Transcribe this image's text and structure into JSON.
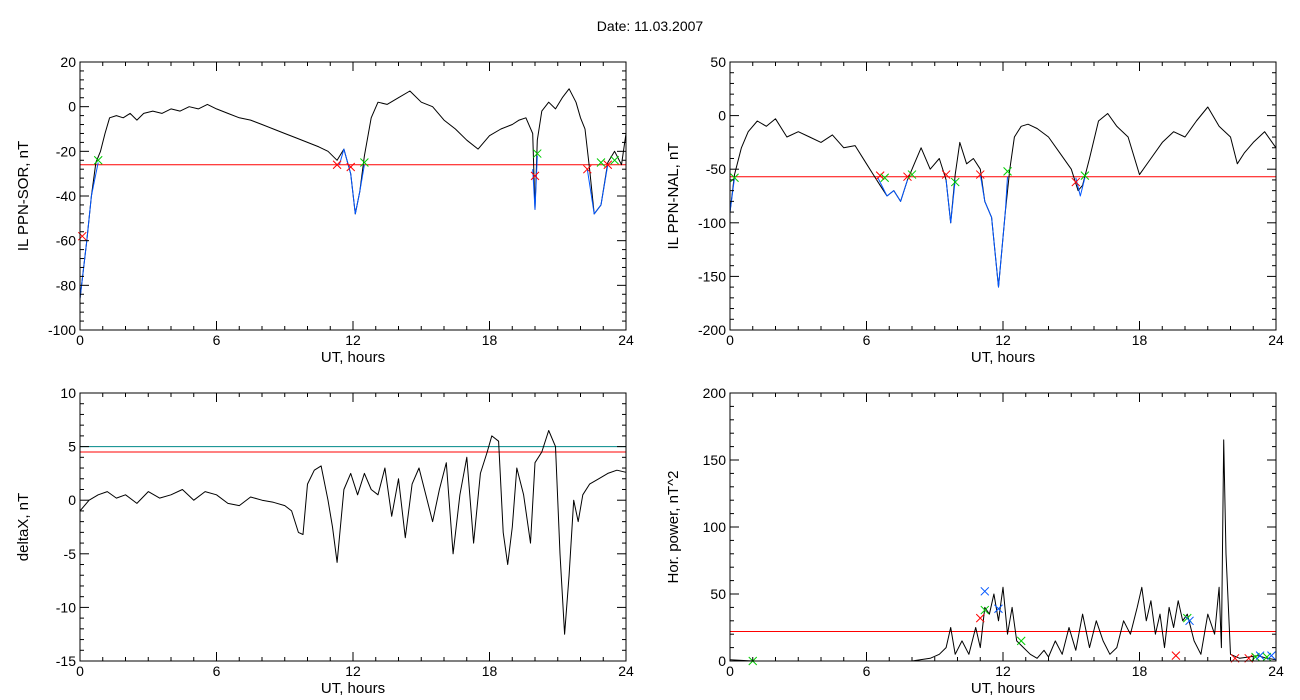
{
  "page": {
    "title": "Date:  11.03.2007"
  },
  "chart_data": [
    {
      "id": "p1",
      "type": "line",
      "ylabel": "IL PPN-SOR, nT",
      "xlabel": "UT, hours",
      "xlim": [
        0,
        24
      ],
      "ylim": [
        -100,
        20
      ],
      "xticks": [
        0,
        6,
        12,
        18,
        24
      ],
      "yticks": [
        -100,
        -80,
        -60,
        -40,
        -20,
        0,
        20
      ],
      "thresholds": [
        {
          "value": -26,
          "color": "#ff0000"
        }
      ],
      "series": [
        {
          "color": "#000000",
          "x": [
            0.0,
            0.3,
            0.5,
            0.7,
            0.9,
            1.1,
            1.3,
            1.6,
            1.9,
            2.2,
            2.5,
            2.8,
            3.2,
            3.6,
            4.0,
            4.4,
            4.8,
            5.2,
            5.6,
            6.0,
            6.5,
            7.0,
            7.5,
            8.0,
            8.5,
            9.0,
            9.5,
            10.0,
            10.5,
            10.9,
            11.3,
            11.6,
            11.9,
            12.1,
            12.3,
            12.5,
            12.8,
            13.1,
            13.5,
            14.0,
            14.5,
            15.0,
            15.5,
            16.0,
            16.5,
            17.0,
            17.5,
            18.0,
            18.5,
            19.0,
            19.3,
            19.6,
            19.9,
            20.0,
            20.1,
            20.3,
            20.6,
            20.9,
            21.2,
            21.5,
            21.8,
            22.0,
            22.2,
            22.4,
            22.6,
            22.9,
            23.2,
            23.5,
            23.8,
            24.0
          ],
          "y": [
            -86,
            -60,
            -40,
            -25,
            -20,
            -12,
            -5,
            -4,
            -5,
            -3,
            -6,
            -3,
            -2,
            -3,
            -1,
            -2,
            0,
            -1,
            1,
            -1,
            -3,
            -5,
            -6,
            -8,
            -10,
            -12,
            -14,
            -16,
            -18,
            -20,
            -24,
            -19,
            -30,
            -48,
            -38,
            -22,
            -5,
            2,
            1,
            4,
            7,
            2,
            0,
            -6,
            -10,
            -15,
            -19,
            -13,
            -10,
            -8,
            -6,
            -5,
            -12,
            -46,
            -15,
            -2,
            2,
            -1,
            4,
            8,
            2,
            -5,
            -10,
            -28,
            -48,
            -44,
            -25,
            -20,
            -26,
            -12
          ]
        },
        {
          "color": "#0055ff",
          "x": [
            0.0,
            0.3,
            0.5,
            0.7,
            0.8
          ],
          "y": [
            -86,
            -60,
            -40,
            -30,
            -25
          ]
        },
        {
          "color": "#0055ff",
          "x": [
            11.4,
            11.6,
            11.9,
            12.1,
            12.3,
            12.5
          ],
          "y": [
            -26,
            -19,
            -30,
            -48,
            -38,
            -26
          ]
        },
        {
          "color": "#0055ff",
          "x": [
            19.9,
            20.0,
            20.1
          ],
          "y": [
            -28,
            -46,
            -22
          ]
        },
        {
          "color": "#0055ff",
          "x": [
            22.3,
            22.6,
            22.9,
            23.2
          ],
          "y": [
            -28,
            -48,
            -44,
            -26
          ]
        }
      ],
      "markers": [
        {
          "x": 0.1,
          "y": -58,
          "color": "#ff0000"
        },
        {
          "x": 0.8,
          "y": -24,
          "color": "#00cc00"
        },
        {
          "x": 11.3,
          "y": -26,
          "color": "#ff0000"
        },
        {
          "x": 11.9,
          "y": -27,
          "color": "#ff0000"
        },
        {
          "x": 12.5,
          "y": -25,
          "color": "#00cc00"
        },
        {
          "x": 20.0,
          "y": -31,
          "color": "#ff0000"
        },
        {
          "x": 20.1,
          "y": -21,
          "color": "#00cc00"
        },
        {
          "x": 22.3,
          "y": -28,
          "color": "#ff0000"
        },
        {
          "x": 22.9,
          "y": -25,
          "color": "#00cc00"
        },
        {
          "x": 23.2,
          "y": -26,
          "color": "#ff0000"
        },
        {
          "x": 23.5,
          "y": -24,
          "color": "#00cc00"
        }
      ]
    },
    {
      "id": "p2",
      "type": "line",
      "ylabel": "IL PPN-NAL, nT",
      "xlabel": "UT, hours",
      "xlim": [
        0,
        24
      ],
      "ylim": [
        -200,
        50
      ],
      "xticks": [
        0,
        6,
        12,
        18,
        24
      ],
      "yticks": [
        -200,
        -150,
        -100,
        -50,
        0,
        50
      ],
      "thresholds": [
        {
          "value": -57,
          "color": "#ff0000"
        }
      ],
      "series": [
        {
          "color": "#000000",
          "x": [
            0.0,
            0.2,
            0.5,
            0.8,
            1.2,
            1.6,
            2.0,
            2.5,
            3.0,
            3.5,
            4.0,
            4.5,
            5.0,
            5.5,
            6.0,
            6.3,
            6.6,
            6.9,
            7.2,
            7.5,
            7.8,
            8.1,
            8.4,
            8.8,
            9.2,
            9.5,
            9.7,
            9.9,
            10.1,
            10.4,
            10.7,
            11.0,
            11.2,
            11.5,
            11.8,
            12.1,
            12.3,
            12.5,
            12.8,
            13.1,
            13.5,
            14.0,
            14.5,
            15.0,
            15.3,
            15.5,
            15.8,
            16.2,
            16.6,
            17.0,
            17.5,
            18.0,
            18.5,
            19.0,
            19.5,
            20.0,
            20.5,
            21.0,
            21.5,
            22.0,
            22.3,
            22.6,
            23.0,
            23.5,
            24.0
          ],
          "y": [
            -90,
            -55,
            -30,
            -15,
            -5,
            -10,
            -3,
            -20,
            -15,
            -20,
            -25,
            -18,
            -30,
            -28,
            -45,
            -55,
            -65,
            -75,
            -70,
            -80,
            -60,
            -45,
            -30,
            -50,
            -40,
            -60,
            -100,
            -55,
            -25,
            -45,
            -40,
            -50,
            -80,
            -95,
            -160,
            -90,
            -50,
            -20,
            -10,
            -8,
            -12,
            -20,
            -35,
            -50,
            -70,
            -65,
            -40,
            -5,
            2,
            -10,
            -20,
            -55,
            -40,
            -25,
            -15,
            -20,
            -5,
            8,
            -10,
            -20,
            -45,
            -35,
            -25,
            -15,
            -30
          ]
        },
        {
          "color": "#0055ff",
          "x": [
            0.0,
            0.2
          ],
          "y": [
            -90,
            -58
          ]
        },
        {
          "color": "#0055ff",
          "x": [
            6.5,
            6.9,
            7.2,
            7.5,
            7.8
          ],
          "y": [
            -58,
            -75,
            -70,
            -80,
            -60
          ]
        },
        {
          "color": "#0055ff",
          "x": [
            9.5,
            9.7,
            9.9
          ],
          "y": [
            -60,
            -100,
            -60
          ]
        },
        {
          "color": "#0055ff",
          "x": [
            11.0,
            11.2,
            11.5,
            11.8,
            12.1,
            12.2
          ],
          "y": [
            -55,
            -80,
            -95,
            -160,
            -90,
            -57
          ]
        },
        {
          "color": "#0055ff",
          "x": [
            15.2,
            15.4,
            15.6
          ],
          "y": [
            -58,
            -75,
            -58
          ]
        }
      ],
      "markers": [
        {
          "x": 0.2,
          "y": -58,
          "color": "#00cc00"
        },
        {
          "x": 6.6,
          "y": -56,
          "color": "#ff0000"
        },
        {
          "x": 6.8,
          "y": -58,
          "color": "#00cc00"
        },
        {
          "x": 7.8,
          "y": -57,
          "color": "#ff0000"
        },
        {
          "x": 8.0,
          "y": -55,
          "color": "#00cc00"
        },
        {
          "x": 9.5,
          "y": -55,
          "color": "#ff0000"
        },
        {
          "x": 9.9,
          "y": -62,
          "color": "#00cc00"
        },
        {
          "x": 11.0,
          "y": -55,
          "color": "#ff0000"
        },
        {
          "x": 12.2,
          "y": -52,
          "color": "#00cc00"
        },
        {
          "x": 15.2,
          "y": -62,
          "color": "#ff0000"
        },
        {
          "x": 15.6,
          "y": -56,
          "color": "#00cc00"
        }
      ]
    },
    {
      "id": "p3",
      "type": "line",
      "ylabel": "deltaX, nT",
      "xlabel": "UT, hours",
      "xlim": [
        0,
        24
      ],
      "ylim": [
        -15,
        10
      ],
      "xticks": [
        0,
        6,
        12,
        18,
        24
      ],
      "yticks": [
        -15,
        -10,
        -5,
        0,
        5,
        10
      ],
      "thresholds": [
        {
          "value": 5.0,
          "color": "#008888"
        },
        {
          "value": 4.5,
          "color": "#ff0000"
        }
      ],
      "series": [
        {
          "color": "#000000",
          "x": [
            0.0,
            0.4,
            0.8,
            1.2,
            1.6,
            2.0,
            2.5,
            3.0,
            3.5,
            4.0,
            4.5,
            5.0,
            5.5,
            6.0,
            6.5,
            7.0,
            7.5,
            8.0,
            8.5,
            9.0,
            9.3,
            9.6,
            9.8,
            10.0,
            10.3,
            10.6,
            10.9,
            11.1,
            11.3,
            11.6,
            11.9,
            12.2,
            12.5,
            12.8,
            13.1,
            13.4,
            13.7,
            14.0,
            14.3,
            14.6,
            14.9,
            15.2,
            15.5,
            15.8,
            16.1,
            16.4,
            16.7,
            17.0,
            17.3,
            17.6,
            17.9,
            18.1,
            18.4,
            18.6,
            18.8,
            19.0,
            19.2,
            19.5,
            19.8,
            20.0,
            20.3,
            20.6,
            20.9,
            21.1,
            21.3,
            21.5,
            21.7,
            21.9,
            22.1,
            22.4,
            22.8,
            23.2,
            23.6,
            24.0
          ],
          "y": [
            -1.0,
            0.0,
            0.5,
            0.8,
            0.2,
            0.5,
            -0.3,
            0.8,
            0.2,
            0.5,
            1.0,
            0.0,
            0.8,
            0.5,
            -0.3,
            -0.5,
            0.3,
            0.0,
            -0.2,
            -0.5,
            -1.0,
            -3.0,
            -3.2,
            1.5,
            2.8,
            3.2,
            0.0,
            -2.5,
            -5.8,
            1.0,
            2.5,
            0.5,
            2.5,
            1.0,
            0.5,
            3.0,
            -1.5,
            2.0,
            -3.5,
            1.5,
            3.0,
            0.5,
            -2.0,
            1.0,
            3.5,
            -5.0,
            0.5,
            4.0,
            -4.0,
            2.5,
            4.5,
            6.0,
            5.5,
            -3.0,
            -6.0,
            -2.5,
            3.0,
            0.5,
            -4.0,
            3.5,
            4.5,
            6.5,
            5.0,
            -5.0,
            -12.5,
            -7.0,
            0.0,
            -2.0,
            0.5,
            1.5,
            2.0,
            2.5,
            2.8,
            2.6
          ]
        }
      ],
      "markers": []
    },
    {
      "id": "p4",
      "type": "line",
      "ylabel": "Hor. power, nT^2",
      "xlabel": "UT, hours",
      "xlim": [
        0,
        24
      ],
      "ylim": [
        0,
        200
      ],
      "xticks": [
        0,
        6,
        12,
        18,
        24
      ],
      "yticks": [
        0,
        50,
        100,
        150,
        200
      ],
      "thresholds": [
        {
          "value": 22,
          "color": "#ff0000"
        }
      ],
      "series": [
        {
          "color": "#000000",
          "x": [
            0.0,
            1.0,
            2.0,
            3.0,
            4.0,
            5.0,
            6.0,
            7.0,
            8.0,
            8.8,
            9.2,
            9.5,
            9.7,
            9.9,
            10.2,
            10.5,
            10.8,
            11.0,
            11.2,
            11.4,
            11.6,
            11.8,
            12.0,
            12.2,
            12.4,
            12.6,
            12.9,
            13.2,
            13.5,
            13.8,
            14.0,
            14.3,
            14.6,
            14.9,
            15.2,
            15.5,
            15.8,
            16.1,
            16.4,
            16.7,
            17.0,
            17.3,
            17.6,
            17.9,
            18.1,
            18.3,
            18.5,
            18.7,
            18.9,
            19.1,
            19.3,
            19.5,
            19.7,
            19.9,
            20.1,
            20.4,
            20.7,
            21.0,
            21.3,
            21.5,
            21.6,
            21.7,
            21.8,
            22.0,
            22.4,
            22.8,
            23.2,
            23.6,
            24.0
          ],
          "y": [
            1,
            0,
            0,
            0,
            0,
            0,
            0,
            0,
            0,
            2,
            5,
            10,
            25,
            5,
            15,
            5,
            25,
            10,
            40,
            35,
            50,
            30,
            55,
            20,
            40,
            15,
            10,
            5,
            2,
            8,
            3,
            15,
            5,
            25,
            8,
            35,
            10,
            30,
            15,
            5,
            10,
            30,
            20,
            40,
            55,
            30,
            45,
            20,
            35,
            10,
            40,
            25,
            45,
            30,
            35,
            15,
            5,
            35,
            20,
            55,
            10,
            165,
            80,
            5,
            2,
            3,
            4,
            2,
            1
          ]
        }
      ],
      "markers": [
        {
          "x": 1.0,
          "y": 0,
          "color": "#00cc00"
        },
        {
          "x": 11.0,
          "y": 32,
          "color": "#ff0000"
        },
        {
          "x": 11.2,
          "y": 38,
          "color": "#00cc00"
        },
        {
          "x": 11.2,
          "y": 52,
          "color": "#0055ff"
        },
        {
          "x": 11.8,
          "y": 39,
          "color": "#0055ff"
        },
        {
          "x": 12.8,
          "y": 15,
          "color": "#00cc00"
        },
        {
          "x": 19.6,
          "y": 4,
          "color": "#ff0000"
        },
        {
          "x": 20.1,
          "y": 32,
          "color": "#00cc00"
        },
        {
          "x": 20.2,
          "y": 30,
          "color": "#0055ff"
        },
        {
          "x": 22.2,
          "y": 2,
          "color": "#ff0000"
        },
        {
          "x": 22.8,
          "y": 2,
          "color": "#ff0000"
        },
        {
          "x": 23.1,
          "y": 3,
          "color": "#00cc00"
        },
        {
          "x": 23.3,
          "y": 4,
          "color": "#0055ff"
        },
        {
          "x": 23.6,
          "y": 3,
          "color": "#00cc00"
        },
        {
          "x": 23.8,
          "y": 4,
          "color": "#0055ff"
        }
      ]
    }
  ]
}
